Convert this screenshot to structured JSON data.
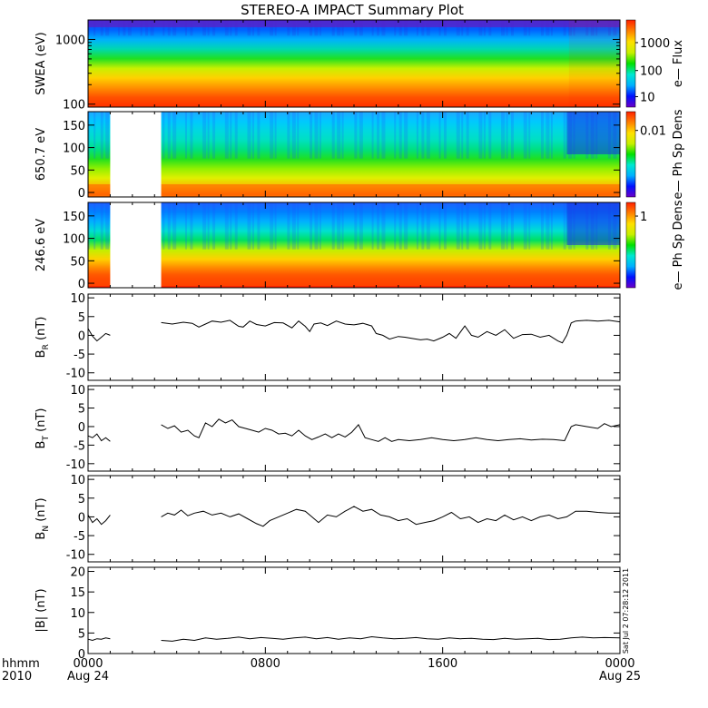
{
  "title": "STEREO-A IMPACT Summary Plot",
  "stamp": "Sat Jul  2 07:28:12 2011",
  "time_axis": {
    "row1": {
      "label": "hhmm",
      "ticks": [
        "0000",
        "0800",
        "1600",
        "0000"
      ]
    },
    "row2": {
      "label": "2010",
      "ticks": [
        "Aug 24",
        "",
        "",
        "Aug 25"
      ]
    },
    "range_hours": [
      0,
      24
    ]
  },
  "colors": {
    "colormap": [
      "#6a00c8",
      "#0010ff",
      "#00b0ff",
      "#00e8d0",
      "#00e000",
      "#c8f000",
      "#ffe000",
      "#ff8000",
      "#ff2000"
    ],
    "line": "#000000"
  },
  "chart_data": [
    {
      "type": "heatmap",
      "ylabel": "SWEA (eV)",
      "yscale": "log",
      "ylim": [
        90,
        2000
      ],
      "yticks": [
        "100",
        "1000"
      ],
      "colorbar_label": "e— Flux",
      "colorbar_scale": "log",
      "colorbar_ticks": [
        "10",
        "100",
        "1000"
      ],
      "data_gaps_hours": [],
      "band_colors_top_to_bottom": [
        "violet",
        "blue",
        "cyan",
        "green",
        "yellow",
        "orange",
        "red"
      ]
    },
    {
      "type": "heatmap",
      "ylabel": "650.7 eV",
      "ylim": [
        -10,
        180
      ],
      "yticks": [
        "0",
        "50",
        "100",
        "150"
      ],
      "colorbar_label": "e— Ph Sp Dens",
      "colorbar_ticks": [
        "0.01"
      ],
      "data_gaps_hours": [
        [
          1.0,
          3.3
        ]
      ]
    },
    {
      "type": "heatmap",
      "ylabel": "246.6 eV",
      "ylim": [
        -10,
        180
      ],
      "yticks": [
        "0",
        "50",
        "100",
        "150"
      ],
      "colorbar_label": "e— Ph Sp Dens",
      "colorbar_ticks": [
        "1"
      ],
      "data_gaps_hours": [
        [
          1.0,
          3.3
        ]
      ]
    },
    {
      "type": "line",
      "ylabel_main": "B",
      "ylabel_sub": "R",
      "ylabel_unit": "(nT)",
      "ylim": [
        -12,
        11
      ],
      "yticks": [
        "-10",
        "-5",
        "0",
        "5",
        "10"
      ],
      "series": [
        {
          "x": [
            0.0,
            0.2,
            0.4,
            0.6,
            0.8,
            1.0
          ],
          "y": [
            1.8,
            -0.2,
            -1.5,
            -0.5,
            0.5,
            0.0
          ]
        },
        {
          "x": [
            3.3,
            3.8,
            4.3,
            4.7,
            5.0,
            5.3,
            5.6,
            6.0,
            6.4,
            6.8,
            7.0,
            7.3,
            7.6,
            8.0,
            8.4,
            8.8,
            9.2,
            9.5,
            9.8,
            10.0,
            10.2,
            10.5,
            10.8,
            11.2,
            11.6,
            12.0,
            12.4,
            12.8,
            13.0,
            13.3,
            13.6,
            14.0,
            14.3,
            14.6,
            15.0,
            15.3,
            15.6,
            16.0,
            16.3,
            16.6,
            17.0,
            17.3,
            17.6,
            18.0,
            18.4,
            18.8,
            19.2,
            19.6,
            20.0,
            20.4,
            20.8,
            21.2,
            21.4,
            21.6,
            21.8,
            22.0,
            22.5,
            23.0,
            23.5,
            24.0
          ],
          "y": [
            3.4,
            3.0,
            3.5,
            3.2,
            2.2,
            3.0,
            3.8,
            3.5,
            4.0,
            2.4,
            2.2,
            3.8,
            2.9,
            2.5,
            3.4,
            3.3,
            2.0,
            3.8,
            2.4,
            1.0,
            3.0,
            3.3,
            2.6,
            3.8,
            3.0,
            2.8,
            3.2,
            2.5,
            0.5,
            0.0,
            -1.0,
            -0.3,
            -0.5,
            -0.8,
            -1.2,
            -1.0,
            -1.5,
            -0.5,
            0.5,
            -0.8,
            2.5,
            0.0,
            -0.5,
            1.0,
            0.0,
            1.5,
            -0.8,
            0.2,
            0.3,
            -0.5,
            0.0,
            -1.5,
            -2.0,
            0.0,
            3.3,
            3.8,
            4.0,
            3.8,
            4.0,
            3.6
          ]
        }
      ]
    },
    {
      "type": "line",
      "ylabel_main": "B",
      "ylabel_sub": "T",
      "ylabel_unit": "(nT)",
      "ylim": [
        -12,
        11
      ],
      "yticks": [
        "-10",
        "-5",
        "0",
        "5",
        "10"
      ],
      "series": [
        {
          "x": [
            0.0,
            0.2,
            0.4,
            0.6,
            0.8,
            1.0
          ],
          "y": [
            -2.5,
            -3.0,
            -2.0,
            -3.8,
            -3.0,
            -4.0
          ]
        },
        {
          "x": [
            3.3,
            3.6,
            3.9,
            4.2,
            4.5,
            4.8,
            5.0,
            5.3,
            5.6,
            5.9,
            6.2,
            6.5,
            6.8,
            7.1,
            7.4,
            7.7,
            8.0,
            8.3,
            8.6,
            8.9,
            9.2,
            9.5,
            9.8,
            10.1,
            10.4,
            10.7,
            11.0,
            11.3,
            11.6,
            11.9,
            12.2,
            12.5,
            12.8,
            13.1,
            13.4,
            13.7,
            14.0,
            14.5,
            15.0,
            15.5,
            16.0,
            16.5,
            17.0,
            17.5,
            18.0,
            18.5,
            19.0,
            19.5,
            20.0,
            20.5,
            21.0,
            21.5,
            21.8,
            22.0,
            22.5,
            23.0,
            23.3,
            23.6,
            24.0
          ],
          "y": [
            0.5,
            -0.5,
            0.2,
            -1.5,
            -1.0,
            -2.5,
            -3.0,
            1.0,
            0.0,
            2.0,
            1.0,
            1.8,
            0.0,
            -0.5,
            -1.0,
            -1.5,
            -0.5,
            -1.0,
            -2.0,
            -1.8,
            -2.5,
            -1.0,
            -2.5,
            -3.5,
            -2.8,
            -2.0,
            -3.0,
            -2.0,
            -2.8,
            -1.5,
            0.5,
            -3.0,
            -3.5,
            -4.0,
            -3.0,
            -4.0,
            -3.5,
            -3.8,
            -3.5,
            -3.0,
            -3.5,
            -3.8,
            -3.5,
            -3.0,
            -3.5,
            -3.8,
            -3.5,
            -3.3,
            -3.6,
            -3.4,
            -3.5,
            -3.8,
            0.0,
            0.5,
            0.0,
            -0.5,
            0.8,
            0.0,
            0.5
          ]
        }
      ]
    },
    {
      "type": "line",
      "ylabel_main": "B",
      "ylabel_sub": "N",
      "ylabel_unit": "(nT)",
      "ylim": [
        -12,
        11
      ],
      "yticks": [
        "-10",
        "-5",
        "0",
        "5",
        "10"
      ],
      "series": [
        {
          "x": [
            0.0,
            0.2,
            0.4,
            0.6,
            0.8,
            1.0
          ],
          "y": [
            0.5,
            -1.5,
            -0.5,
            -2.0,
            -1.0,
            0.5
          ]
        },
        {
          "x": [
            3.3,
            3.6,
            3.9,
            4.2,
            4.5,
            4.8,
            5.2,
            5.6,
            6.0,
            6.4,
            6.8,
            7.2,
            7.6,
            7.9,
            8.2,
            8.6,
            9.0,
            9.4,
            9.8,
            10.1,
            10.4,
            10.8,
            11.2,
            11.6,
            12.0,
            12.4,
            12.8,
            13.2,
            13.6,
            14.0,
            14.4,
            14.8,
            15.2,
            15.6,
            16.0,
            16.4,
            16.8,
            17.2,
            17.6,
            18.0,
            18.4,
            18.8,
            19.2,
            19.6,
            20.0,
            20.4,
            20.8,
            21.2,
            21.6,
            22.0,
            22.5,
            23.0,
            23.5,
            24.0
          ],
          "y": [
            0.0,
            1.0,
            0.5,
            1.8,
            0.3,
            1.0,
            1.5,
            0.5,
            1.0,
            0.0,
            0.8,
            -0.5,
            -1.8,
            -2.5,
            -1.0,
            0.0,
            1.0,
            2.0,
            1.5,
            0.0,
            -1.5,
            0.5,
            0.0,
            1.5,
            2.8,
            1.5,
            2.0,
            0.5,
            0.0,
            -1.0,
            -0.5,
            -2.0,
            -1.5,
            -1.0,
            0.0,
            1.2,
            -0.5,
            0.0,
            -1.5,
            -0.5,
            -1.0,
            0.5,
            -0.8,
            0.0,
            -1.0,
            0.0,
            0.5,
            -0.5,
            0.0,
            1.5,
            1.5,
            1.2,
            1.0,
            1.0
          ]
        }
      ]
    },
    {
      "type": "line",
      "ylabel_main": "|B| (nT)",
      "ylim": [
        0,
        21
      ],
      "yticks": [
        "0",
        "5",
        "10",
        "15",
        "20"
      ],
      "series": [
        {
          "x": [
            0.0,
            0.2,
            0.4,
            0.6,
            0.8,
            1.0
          ],
          "y": [
            3.5,
            3.2,
            3.6,
            3.5,
            3.8,
            3.6
          ]
        },
        {
          "x": [
            3.3,
            3.8,
            4.3,
            4.8,
            5.3,
            5.8,
            6.3,
            6.8,
            7.3,
            7.8,
            8.3,
            8.8,
            9.3,
            9.8,
            10.3,
            10.8,
            11.3,
            11.8,
            12.3,
            12.8,
            13.3,
            13.8,
            14.3,
            14.8,
            15.3,
            15.8,
            16.3,
            16.8,
            17.3,
            17.8,
            18.3,
            18.8,
            19.3,
            19.8,
            20.3,
            20.8,
            21.3,
            21.8,
            22.3,
            22.8,
            23.3,
            24.0
          ],
          "y": [
            3.2,
            3.0,
            3.5,
            3.2,
            3.8,
            3.5,
            3.7,
            4.0,
            3.6,
            3.9,
            3.7,
            3.5,
            3.8,
            4.0,
            3.6,
            3.9,
            3.5,
            3.8,
            3.6,
            4.1,
            3.8,
            3.6,
            3.7,
            3.9,
            3.6,
            3.5,
            3.8,
            3.6,
            3.7,
            3.5,
            3.4,
            3.7,
            3.5,
            3.6,
            3.7,
            3.4,
            3.5,
            3.8,
            4.0,
            3.8,
            3.9,
            3.8
          ]
        }
      ]
    }
  ]
}
